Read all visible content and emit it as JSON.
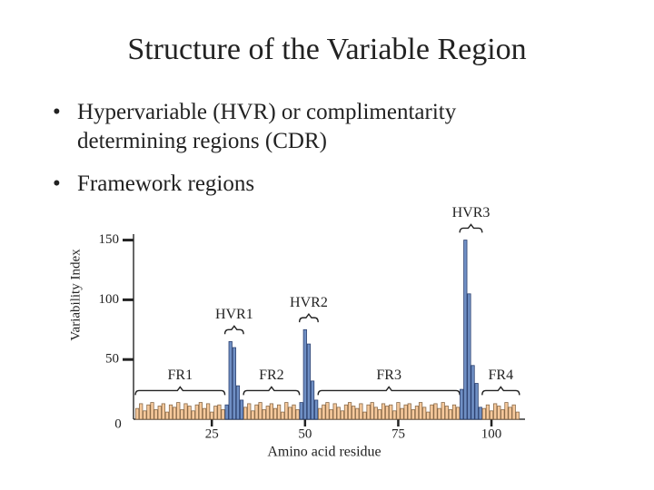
{
  "slide": {
    "title": "Structure of the Variable Region",
    "bullets": [
      "Hypervariable (HVR) or complimentarity determining regions (CDR)",
      "Framework regions"
    ]
  },
  "chart_data": {
    "type": "bar",
    "x_label": "Amino acid residue",
    "y_label": "Variability Index",
    "xlim": [
      4,
      109
    ],
    "xticks": [
      25,
      50,
      75,
      100
    ],
    "ylim": [
      0,
      155
    ],
    "yticks": [
      0,
      50,
      100,
      150
    ],
    "series": [
      {
        "label": "FR1",
        "color": "#f6c99c",
        "x": [
          5,
          6,
          7,
          8,
          9,
          10,
          11,
          12,
          13,
          14,
          15,
          16,
          17,
          18,
          19,
          20,
          21,
          22,
          23,
          24,
          25,
          26,
          27,
          28
        ],
        "values": [
          9,
          13,
          7,
          12,
          14,
          8,
          11,
          13,
          6,
          12,
          10,
          14,
          8,
          13,
          11,
          7,
          12,
          14,
          9,
          13,
          6,
          11,
          12,
          8
        ]
      },
      {
        "label": "HVR1",
        "color": "#6f8fc4",
        "x": [
          29,
          30,
          31,
          32,
          33
        ],
        "values": [
          12,
          65,
          60,
          28,
          16
        ]
      },
      {
        "label": "FR2",
        "color": "#f6c99c",
        "x": [
          34,
          35,
          36,
          37,
          38,
          39,
          40,
          41,
          42,
          43,
          44,
          45,
          46,
          47,
          48
        ],
        "values": [
          10,
          13,
          7,
          12,
          14,
          8,
          11,
          13,
          9,
          12,
          6,
          14,
          10,
          12,
          8
        ]
      },
      {
        "label": "HVR2",
        "color": "#6f8fc4",
        "x": [
          49,
          50,
          51,
          52,
          53
        ],
        "values": [
          14,
          75,
          63,
          32,
          16
        ]
      },
      {
        "label": "FR3",
        "color": "#f6c99c",
        "x": [
          54,
          55,
          56,
          57,
          58,
          59,
          60,
          61,
          62,
          63,
          64,
          65,
          66,
          67,
          68,
          69,
          70,
          71,
          72,
          73,
          74,
          75,
          76,
          77,
          78,
          79,
          80,
          81,
          82,
          83,
          84,
          85,
          86,
          87,
          88,
          89,
          90,
          91
        ],
        "values": [
          9,
          12,
          14,
          8,
          13,
          10,
          7,
          12,
          14,
          11,
          9,
          13,
          6,
          12,
          14,
          10,
          8,
          13,
          11,
          12,
          7,
          14,
          9,
          12,
          13,
          8,
          11,
          14,
          10,
          6,
          12,
          13,
          9,
          14,
          11,
          8,
          12,
          10
        ]
      },
      {
        "label": "HVR3",
        "color": "#6f8fc4",
        "x": [
          92,
          93,
          94,
          95,
          96,
          97
        ],
        "values": [
          25,
          150,
          105,
          45,
          30,
          10
        ]
      },
      {
        "label": "FR4",
        "color": "#f6c99c",
        "x": [
          98,
          99,
          100,
          101,
          102,
          103,
          104,
          105,
          106,
          107
        ],
        "values": [
          9,
          12,
          7,
          13,
          11,
          8,
          14,
          10,
          12,
          6
        ]
      }
    ]
  }
}
